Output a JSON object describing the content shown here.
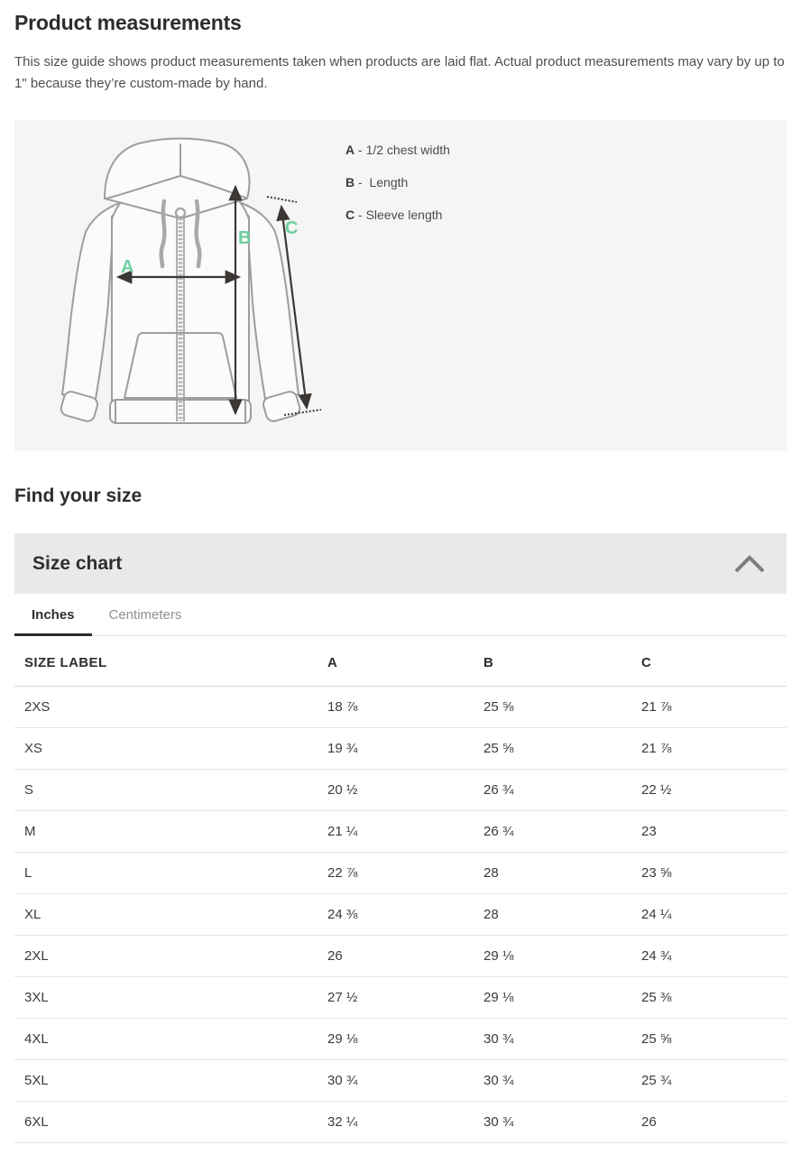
{
  "header": {
    "title": "Product measurements",
    "description": "This size guide shows product measurements taken when products are laid flat. Actual product measurements may vary by up to 1\" because they’re custom-made by hand."
  },
  "diagram": {
    "markers": [
      "A",
      "B",
      "C"
    ],
    "marker_color": "#6fcfa0",
    "legend": [
      {
        "key": "A",
        "text": " - 1/2 chest width"
      },
      {
        "key": "B",
        "text": " -  Length"
      },
      {
        "key": "C",
        "text": " - Sleeve length"
      }
    ]
  },
  "find_size": {
    "title": "Find your size"
  },
  "size_chart": {
    "title": "Size chart",
    "expanded": true,
    "chevron_icon": "chevron-up",
    "tabs": [
      {
        "label": "Inches",
        "active": true
      },
      {
        "label": "Centimeters",
        "active": false
      }
    ],
    "table": {
      "columns": [
        "SIZE LABEL",
        "A",
        "B",
        "C"
      ],
      "rows": [
        [
          "2XS",
          "18 ⅞",
          "25 ⅝",
          "21 ⅞"
        ],
        [
          "XS",
          "19 ¾",
          "25 ⅝",
          "21 ⅞"
        ],
        [
          "S",
          "20 ½",
          "26 ¾",
          "22 ½"
        ],
        [
          "M",
          "21 ¼",
          "26 ¾",
          "23"
        ],
        [
          "L",
          "22 ⅞",
          "28",
          "23 ⅝"
        ],
        [
          "XL",
          "24 ⅜",
          "28",
          "24 ¼"
        ],
        [
          "2XL",
          "26",
          "29 ⅛",
          "24 ¾"
        ],
        [
          "3XL",
          "27 ½",
          "29 ⅛",
          "25 ⅜"
        ],
        [
          "4XL",
          "29 ⅛",
          "30 ¾",
          "25 ⅝"
        ],
        [
          "5XL",
          "30 ¾",
          "30 ¾",
          "25 ¾"
        ],
        [
          "6XL",
          "32 ¼",
          "30 ¾",
          "26"
        ]
      ]
    }
  }
}
